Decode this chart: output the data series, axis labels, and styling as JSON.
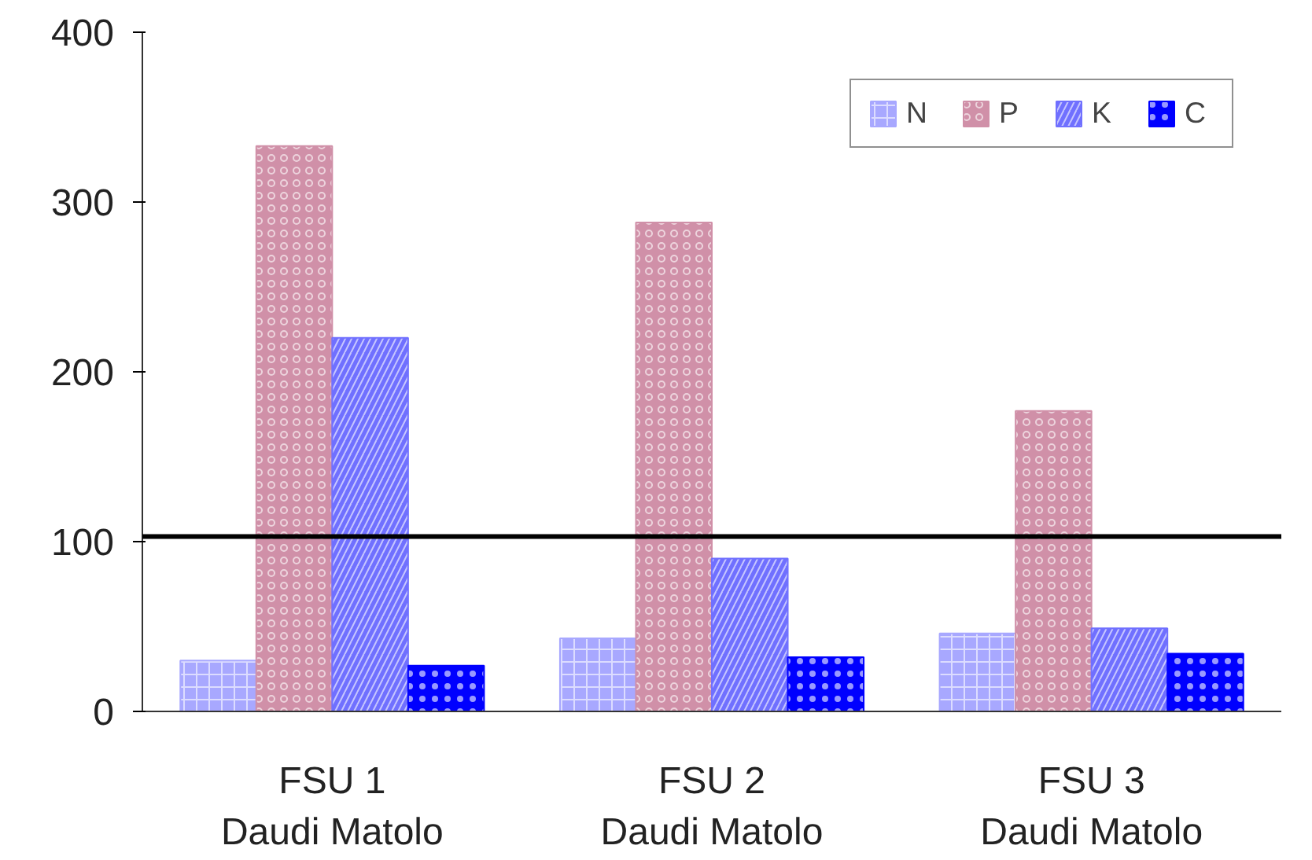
{
  "chart_data": {
    "type": "bar",
    "categories": [
      "FSU 1\nDaudi Matolo",
      "FSU 2\nDaudi Matolo",
      "FSU 3\nDaudi Matolo"
    ],
    "series": [
      {
        "name": "N",
        "color": "#a8a8ff",
        "values": [
          30,
          43,
          46
        ]
      },
      {
        "name": "P",
        "color": "#d090a8",
        "values": [
          333,
          288,
          177
        ]
      },
      {
        "name": "K",
        "color": "#7070ff",
        "values": [
          220,
          90,
          49
        ]
      },
      {
        "name": "C",
        "color": "#0000ff",
        "values": [
          27,
          32,
          34
        ]
      }
    ],
    "ylim": [
      0,
      400
    ],
    "yticks": [
      0,
      100,
      200,
      300,
      400
    ],
    "ref_lines": [
      {
        "axis": "y",
        "value": 103,
        "color": "#000000",
        "line_style": "solid"
      }
    ],
    "grid": false,
    "legend": "top right"
  }
}
